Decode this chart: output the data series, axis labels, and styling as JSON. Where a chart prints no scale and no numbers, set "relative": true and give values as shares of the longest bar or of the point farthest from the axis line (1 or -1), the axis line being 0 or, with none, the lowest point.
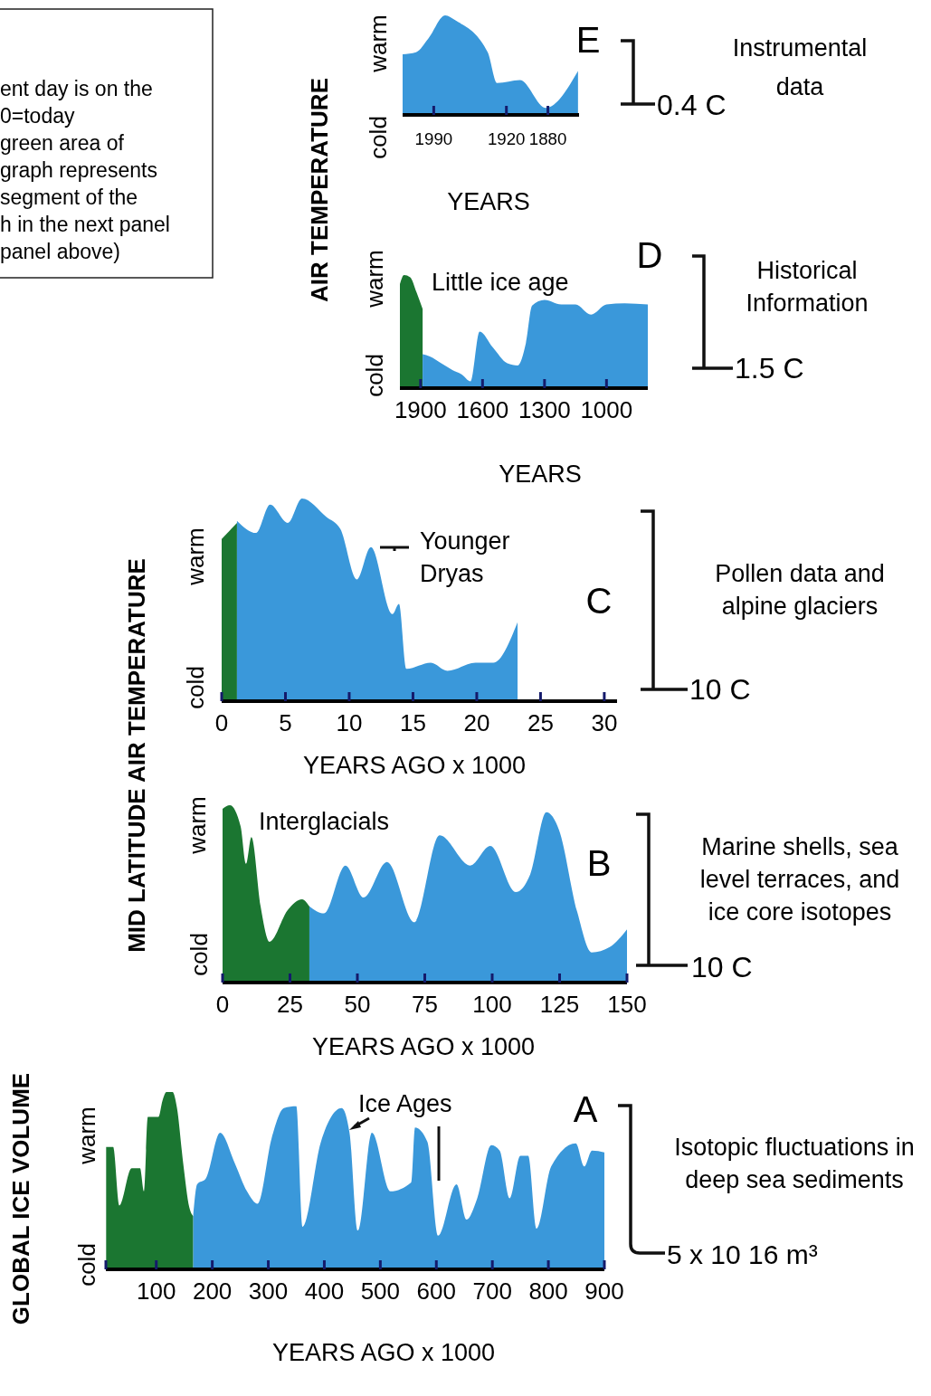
{
  "chart_data": [
    {
      "type": "area",
      "relative": true,
      "ylabel": "AIR TEMPERATURE",
      "xlabel": "YEARS",
      "xlim": [
        2020,
        1850
      ],
      "xticks": [
        1990,
        1920,
        1880
      ],
      "series": [
        {
          "color": "#3a98da",
          "x": [
            2020,
            2007,
            1995,
            1979,
            1969,
            1938,
            1929,
            1907,
            1882,
            1851
          ],
          "values": [
            0.61,
            0.63,
            0.77,
            1.0,
            0.95,
            0.63,
            0.32,
            0.35,
            0.07,
            0.44
          ]
        }
      ],
      "annotations": [
        "E",
        "0.4 C",
        "Instrumental data",
        "warm",
        "cold",
        "ent day is on the",
        "0=today",
        "green area of",
        "graph represents",
        "segment of the",
        "h in the next panel",
        "panel above)"
      ]
    },
    {
      "type": "area",
      "relative": true,
      "xlabel": "YEARS",
      "xlim": [
        2000,
        800
      ],
      "xticks": [
        1900,
        1600,
        1300,
        1000
      ],
      "series": [
        {
          "color": "#1b7631",
          "x": [
            2000,
            1980,
            1950,
            1920,
            1890
          ],
          "values": [
            0.92,
            1.0,
            0.98,
            0.85,
            0.7
          ]
        },
        {
          "color": "#3a98da",
          "x": [
            1890,
            1855,
            1800,
            1746,
            1700,
            1658,
            1614,
            1550,
            1480,
            1430,
            1390,
            1360,
            1300,
            1219,
            1150,
            1075,
            1000,
            912,
            800
          ],
          "values": [
            0.3,
            0.28,
            0.22,
            0.16,
            0.12,
            0.06,
            0.5,
            0.36,
            0.22,
            0.2,
            0.4,
            0.73,
            0.78,
            0.74,
            0.74,
            0.65,
            0.74,
            0.75,
            0.74
          ]
        }
      ],
      "annotations": [
        "D",
        "1.5 C",
        "Historical Information",
        "warm",
        "cold",
        "Little ice age"
      ]
    },
    {
      "type": "area",
      "relative": true,
      "ylabel": "MID LATITUDE AIR TEMPERATURE",
      "xlabel": "YEARS AGO x 1000",
      "xlim": [
        0,
        31
      ],
      "xticks": [
        0,
        5,
        10,
        15,
        20,
        25,
        30
      ],
      "series": [
        {
          "color": "#1b7631",
          "x": [
            0,
            1.2
          ],
          "values": [
            0.8,
            0.88
          ]
        },
        {
          "color": "#3a98da",
          "x": [
            1.2,
            2.7,
            3.8,
            5.2,
            6.3,
            8.2,
            9.3,
            10.6,
            11.7,
            13.4,
            13.9,
            14.5,
            16.4,
            17.7,
            19.9,
            21.3,
            23.2
          ],
          "values": [
            0.89,
            0.83,
            0.97,
            0.88,
            1.0,
            0.91,
            0.85,
            0.6,
            0.76,
            0.43,
            0.48,
            0.16,
            0.19,
            0.15,
            0.19,
            0.19,
            0.39
          ]
        }
      ],
      "annotations": [
        "C",
        "10 C",
        "Pollen data and alpine glaciers",
        "warm",
        "cold",
        "Younger Dryas"
      ]
    },
    {
      "type": "area",
      "relative": true,
      "xlabel": "YEARS AGO x 1000",
      "xlim": [
        0,
        150
      ],
      "xticks": [
        0,
        25,
        50,
        75,
        100,
        125,
        150
      ],
      "series": [
        {
          "color": "#1b7631",
          "x": [
            0,
            2.7,
            6.7,
            8.7,
            10.7,
            14.1,
            17.4,
            24.2,
            29.5,
            32.2
          ],
          "values": [
            0.98,
            1.0,
            0.88,
            0.67,
            0.82,
            0.43,
            0.23,
            0.41,
            0.47,
            0.43
          ]
        },
        {
          "color": "#3a98da",
          "x": [
            32.2,
            37.6,
            45.6,
            52.3,
            61,
            71.1,
            80.5,
            91.9,
            99.3,
            108.7,
            114.1,
            120.1,
            124.8,
            131.5,
            136.9,
            143.6,
            150
          ],
          "values": [
            0.43,
            0.39,
            0.66,
            0.48,
            0.68,
            0.34,
            0.83,
            0.66,
            0.77,
            0.51,
            0.61,
            0.96,
            0.86,
            0.4,
            0.17,
            0.2,
            0.3
          ]
        }
      ],
      "annotations": [
        "B",
        "10 C",
        "Marine shells, sea level terraces, and ice core isotopes",
        "warm",
        "cold",
        "Interglacials"
      ]
    },
    {
      "type": "area",
      "relative": true,
      "ylabel": "GLOBAL ICE VOLUME",
      "xlabel": "YEARS AGO x 1000",
      "xlim": [
        10,
        900
      ],
      "xticks": [
        {
          "value": 10,
          "label": null
        },
        100,
        200,
        300,
        400,
        500,
        600,
        700,
        800,
        900
      ],
      "series": [
        {
          "color": "#1b7631",
          "x": [
            10.5,
            23,
            34,
            56,
            71,
            78,
            85,
            104,
            111,
            118,
            129,
            137,
            148,
            159,
            166
          ],
          "values": [
            0.69,
            0.69,
            0.36,
            0.57,
            0.57,
            0.44,
            0.86,
            0.86,
            0.95,
            1.0,
            1.0,
            0.91,
            0.6,
            0.35,
            0.3
          ]
        },
        {
          "color": "#3a98da",
          "x": [
            166,
            173,
            188,
            214,
            240,
            262,
            281,
            306,
            328,
            350,
            361,
            394,
            431,
            445,
            460,
            485,
            518,
            555,
            562,
            584,
            603,
            636,
            654,
            673,
            698,
            713,
            731,
            750,
            764,
            779,
            805,
            849,
            864,
            878,
            900
          ],
          "values": [
            0.3,
            0.48,
            0.51,
            0.77,
            0.6,
            0.44,
            0.37,
            0.74,
            0.91,
            0.92,
            0.24,
            0.72,
            0.91,
            0.77,
            0.22,
            0.77,
            0.44,
            0.49,
            0.8,
            0.72,
            0.19,
            0.48,
            0.28,
            0.4,
            0.7,
            0.67,
            0.4,
            0.64,
            0.64,
            0.23,
            0.58,
            0.71,
            0.58,
            0.67,
            0.66
          ]
        }
      ],
      "annotations": [
        "A",
        "5 x 10 16 m³",
        "Isotopic fluctuations in deep sea sediments",
        "warm",
        "cold",
        "Ice Ages"
      ]
    }
  ]
}
